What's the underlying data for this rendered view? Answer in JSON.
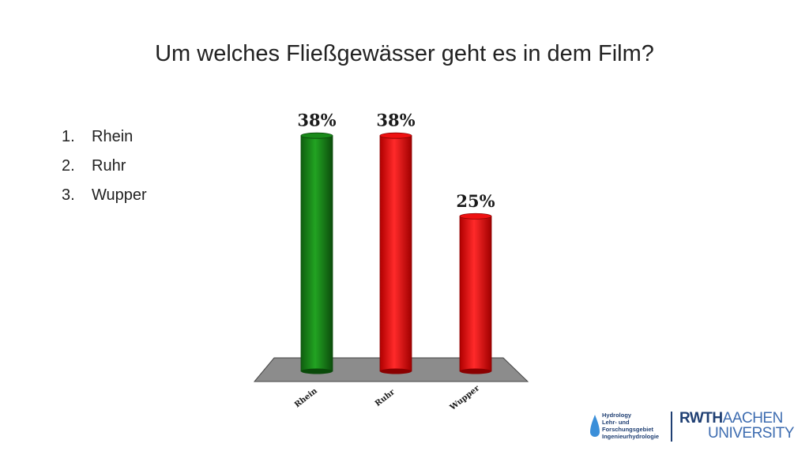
{
  "slide": {
    "title": "Um welches Fließgewässer geht es in dem Film?",
    "answers": [
      {
        "num": "1.",
        "label": "Rhein"
      },
      {
        "num": "2.",
        "label": "Ruhr"
      },
      {
        "num": "3.",
        "label": "Wupper"
      }
    ]
  },
  "chart_data": {
    "type": "bar",
    "categories": [
      "Rhein",
      "Ruhr",
      "Wupper"
    ],
    "values": [
      38,
      38,
      25
    ],
    "data_labels": [
      "38%",
      "38%",
      "25%"
    ],
    "colors": [
      "#1a8a1a",
      "#ee1111",
      "#ee1111"
    ],
    "ylim": [
      0,
      40
    ],
    "grid": false,
    "title": "",
    "xlabel": "",
    "ylabel": ""
  },
  "logos": {
    "hydro": [
      "Hydrology",
      "Lehr- und",
      "Forschungsgebiet",
      "Ingenieurhydrologie"
    ],
    "rwth_line1_strong": "RWTH",
    "rwth_line1_light": "AACHEN",
    "rwth_line2": "UNIVERSITY",
    "icon": "water-drop-icon"
  }
}
